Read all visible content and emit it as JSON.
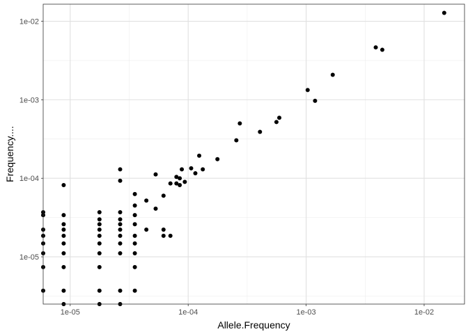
{
  "chart_data": {
    "type": "scatter",
    "xlabel": "Allele.Frequency",
    "ylabel": "Frequency....",
    "x_scale": "log10",
    "y_scale": "log10",
    "xlim": [
      5.9e-06,
      0.022
    ],
    "ylim": [
      2.5e-06,
      0.0165
    ],
    "x_ticks": [
      1e-05,
      0.0001,
      0.001,
      0.01
    ],
    "x_tick_labels": [
      "1e-05",
      "1e-04",
      "1e-03",
      "1e-02"
    ],
    "y_ticks": [
      1e-05,
      0.0001,
      0.001,
      0.01
    ],
    "y_tick_labels": [
      "1e-05",
      "1e-04",
      "1e-03",
      "1e-02"
    ],
    "grid": true,
    "point_color": "#000000",
    "points": [
      [
        5.9e-06,
        3.7e-06
      ],
      [
        5.9e-06,
        7.4e-06
      ],
      [
        5.9e-06,
        1.11e-05
      ],
      [
        5.9e-06,
        1.48e-05
      ],
      [
        5.9e-06,
        1.85e-05
      ],
      [
        5.9e-06,
        2.22e-05
      ],
      [
        5.9e-06,
        3.4e-05
      ],
      [
        5.9e-06,
        3.7e-05
      ],
      [
        8.8e-06,
        2.5e-06
      ],
      [
        8.8e-06,
        3.7e-06
      ],
      [
        8.8e-06,
        7.4e-06
      ],
      [
        8.8e-06,
        1.11e-05
      ],
      [
        8.8e-06,
        1.48e-05
      ],
      [
        8.8e-06,
        1.85e-05
      ],
      [
        8.8e-06,
        2.22e-05
      ],
      [
        8.8e-06,
        2.6e-05
      ],
      [
        8.8e-06,
        3.4e-05
      ],
      [
        8.8e-06,
        8.2e-05
      ],
      [
        1.77e-05,
        2.5e-06
      ],
      [
        1.77e-05,
        3.7e-06
      ],
      [
        1.77e-05,
        7.4e-06
      ],
      [
        1.77e-05,
        1.11e-05
      ],
      [
        1.77e-05,
        1.48e-05
      ],
      [
        1.77e-05,
        1.85e-05
      ],
      [
        1.77e-05,
        2.22e-05
      ],
      [
        1.77e-05,
        2.6e-05
      ],
      [
        1.77e-05,
        3e-05
      ],
      [
        1.77e-05,
        3.7e-05
      ],
      [
        2.65e-05,
        2.5e-06
      ],
      [
        2.65e-05,
        3.7e-06
      ],
      [
        2.65e-05,
        1.11e-05
      ],
      [
        2.65e-05,
        1.48e-05
      ],
      [
        2.65e-05,
        1.85e-05
      ],
      [
        2.65e-05,
        2.22e-05
      ],
      [
        2.65e-05,
        2.6e-05
      ],
      [
        2.65e-05,
        3e-05
      ],
      [
        2.65e-05,
        3.7e-05
      ],
      [
        2.65e-05,
        9.3e-05
      ],
      [
        2.65e-05,
        0.00013
      ],
      [
        3.53e-05,
        3.7e-06
      ],
      [
        3.53e-05,
        7.4e-06
      ],
      [
        3.53e-05,
        1.11e-05
      ],
      [
        3.53e-05,
        1.48e-05
      ],
      [
        3.53e-05,
        1.85e-05
      ],
      [
        3.53e-05,
        2.6e-05
      ],
      [
        3.53e-05,
        3.4e-05
      ],
      [
        3.53e-05,
        4.5e-05
      ],
      [
        3.53e-05,
        6.3e-05
      ],
      [
        4.42e-05,
        2.22e-05
      ],
      [
        4.42e-05,
        5.2e-05
      ],
      [
        5.3e-05,
        4.1e-05
      ],
      [
        5.3e-05,
        0.000112
      ],
      [
        6.18e-05,
        1.85e-05
      ],
      [
        6.18e-05,
        2.22e-05
      ],
      [
        6.18e-05,
        6e-05
      ],
      [
        7.07e-05,
        1.85e-05
      ],
      [
        7.07e-05,
        8.6e-05
      ],
      [
        7.95e-05,
        8.6e-05
      ],
      [
        7.95e-05,
        0.000104
      ],
      [
        8.48e-05,
        8.2e-05
      ],
      [
        8.48e-05,
        0.0001
      ],
      [
        8.83e-05,
        0.00013
      ],
      [
        9.36e-05,
        9e-05
      ],
      [
        0.000106,
        0.000134
      ],
      [
        0.000115,
        0.000116
      ],
      [
        0.000124,
        0.000194
      ],
      [
        0.000133,
        0.00013
      ],
      [
        0.000177,
        0.000175
      ],
      [
        0.000256,
        0.000305
      ],
      [
        0.000274,
        0.0005
      ],
      [
        0.000406,
        0.00039
      ],
      [
        0.00056,
        0.00052
      ],
      [
        0.000592,
        0.00059
      ],
      [
        0.00103,
        0.00133
      ],
      [
        0.00119,
        0.00097
      ],
      [
        0.00168,
        0.00208
      ],
      [
        0.00389,
        0.00465
      ],
      [
        0.00442,
        0.00433
      ],
      [
        0.0148,
        0.0128
      ]
    ]
  }
}
